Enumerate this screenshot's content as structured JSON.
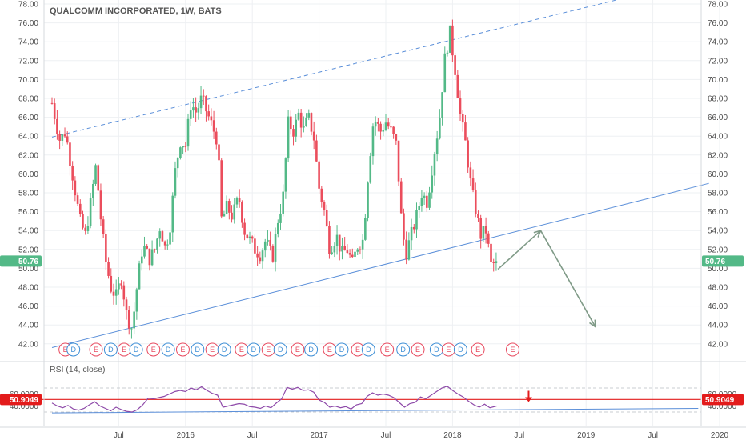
{
  "chart_data": [
    {
      "type": "candlestick",
      "title": "QUALCOMM INCORPORATED, 1W, BATS",
      "ylim": [
        41.4,
        78.0
      ],
      "y_ticks": [
        "42.00",
        "44.00",
        "46.00",
        "48.00",
        "50.00",
        "52.00",
        "54.00",
        "56.00",
        "58.00",
        "60.00",
        "62.00",
        "64.00",
        "66.00",
        "68.00",
        "70.00",
        "72.00",
        "74.00",
        "76.00",
        "78.00"
      ],
      "x_ticks": [
        {
          "label": "Jul",
          "t": 0.5
        },
        {
          "label": "2016",
          "t": 1.0
        },
        {
          "label": "Jul",
          "t": 1.5
        },
        {
          "label": "2017",
          "t": 2.0
        },
        {
          "label": "Jul",
          "t": 2.5
        },
        {
          "label": "2018",
          "t": 3.0
        },
        {
          "label": "Jul",
          "t": 3.5
        },
        {
          "label": "2019",
          "t": 4.0
        },
        {
          "label": "Jul",
          "t": 4.5
        },
        {
          "label": "2020",
          "t": 5.0
        }
      ],
      "last_price": "50.76",
      "up_color": "#53b987",
      "down_color": "#eb4d5c",
      "anchors": [
        [
          0.0,
          67.5
        ],
        [
          0.06,
          63.5
        ],
        [
          0.1,
          64.5
        ],
        [
          0.13,
          62.0
        ],
        [
          0.17,
          58.5
        ],
        [
          0.21,
          55.0
        ],
        [
          0.25,
          53.5
        ],
        [
          0.29,
          57.0
        ],
        [
          0.33,
          61.0
        ],
        [
          0.36,
          56.0
        ],
        [
          0.4,
          51.0
        ],
        [
          0.44,
          48.0
        ],
        [
          0.48,
          47.0
        ],
        [
          0.52,
          49.0
        ],
        [
          0.56,
          45.0
        ],
        [
          0.6,
          43.6
        ],
        [
          0.64,
          48.5
        ],
        [
          0.68,
          52.5
        ],
        [
          0.73,
          51.0
        ],
        [
          0.77,
          52.0
        ],
        [
          0.81,
          54.5
        ],
        [
          0.85,
          52.0
        ],
        [
          0.89,
          55.0
        ],
        [
          0.92,
          60.0
        ],
        [
          0.96,
          63.5
        ],
        [
          1.0,
          63.0
        ],
        [
          1.04,
          67.5
        ],
        [
          1.08,
          66.5
        ],
        [
          1.12,
          68.0
        ],
        [
          1.16,
          66.5
        ],
        [
          1.2,
          65.0
        ],
        [
          1.24,
          63.5
        ],
        [
          1.27,
          55.0
        ],
        [
          1.31,
          56.5
        ],
        [
          1.35,
          55.5
        ],
        [
          1.4,
          57.5
        ],
        [
          1.44,
          54.0
        ],
        [
          1.48,
          53.0
        ],
        [
          1.52,
          52.0
        ],
        [
          1.56,
          51.5
        ],
        [
          1.6,
          53.0
        ],
        [
          1.65,
          51.0
        ],
        [
          1.69,
          55.0
        ],
        [
          1.73,
          57.5
        ],
        [
          1.77,
          65.5
        ],
        [
          1.81,
          64.5
        ],
        [
          1.85,
          66.5
        ],
        [
          1.88,
          64.5
        ],
        [
          1.92,
          66.0
        ],
        [
          1.96,
          64.0
        ],
        [
          2.0,
          58.5
        ],
        [
          2.04,
          56.0
        ],
        [
          2.08,
          52.0
        ],
        [
          2.13,
          53.5
        ],
        [
          2.17,
          51.5
        ],
        [
          2.21,
          52.0
        ],
        [
          2.25,
          50.5
        ],
        [
          2.29,
          52.5
        ],
        [
          2.33,
          53.0
        ],
        [
          2.37,
          60.5
        ],
        [
          2.41,
          66.0
        ],
        [
          2.46,
          64.5
        ],
        [
          2.5,
          65.5
        ],
        [
          2.54,
          64.5
        ],
        [
          2.58,
          63.0
        ],
        [
          2.62,
          54.5
        ],
        [
          2.65,
          51.5
        ],
        [
          2.69,
          53.5
        ],
        [
          2.73,
          55.5
        ],
        [
          2.77,
          58.0
        ],
        [
          2.81,
          57.0
        ],
        [
          2.86,
          62.0
        ],
        [
          2.9,
          65.5
        ],
        [
          2.94,
          72.0
        ],
        [
          2.98,
          75.0
        ],
        [
          3.02,
          71.0
        ],
        [
          3.06,
          66.0
        ],
        [
          3.1,
          63.0
        ],
        [
          3.14,
          58.5
        ],
        [
          3.17,
          56.5
        ],
        [
          3.21,
          53.5
        ],
        [
          3.25,
          54.0
        ],
        [
          3.29,
          50.2
        ],
        [
          3.33,
          50.76
        ]
      ],
      "events": [
        {
          "t": 0.1,
          "label": "E"
        },
        {
          "t": 0.16,
          "label": "D"
        },
        {
          "t": 0.33,
          "label": "E"
        },
        {
          "t": 0.44,
          "label": "D"
        },
        {
          "t": 0.54,
          "label": "E"
        },
        {
          "t": 0.63,
          "label": "D"
        },
        {
          "t": 0.76,
          "label": "E"
        },
        {
          "t": 0.87,
          "label": "D"
        },
        {
          "t": 0.98,
          "label": "E"
        },
        {
          "t": 1.09,
          "label": "D"
        },
        {
          "t": 1.2,
          "label": "E"
        },
        {
          "t": 1.29,
          "label": "D"
        },
        {
          "t": 1.42,
          "label": "E"
        },
        {
          "t": 1.51,
          "label": "D"
        },
        {
          "t": 1.62,
          "label": "E"
        },
        {
          "t": 1.71,
          "label": "D"
        },
        {
          "t": 1.84,
          "label": "E"
        },
        {
          "t": 1.94,
          "label": "D"
        },
        {
          "t": 2.08,
          "label": "E"
        },
        {
          "t": 2.17,
          "label": "D"
        },
        {
          "t": 2.29,
          "label": "E"
        },
        {
          "t": 2.37,
          "label": "D"
        },
        {
          "t": 2.51,
          "label": "E"
        },
        {
          "t": 2.63,
          "label": "D"
        },
        {
          "t": 2.74,
          "label": "E"
        },
        {
          "t": 2.88,
          "label": "D"
        },
        {
          "t": 2.97,
          "label": "E"
        },
        {
          "t": 3.06,
          "label": "D"
        },
        {
          "t": 3.19,
          "label": "E"
        },
        {
          "t": 3.45,
          "label": "E"
        }
      ],
      "trendlines": [
        {
          "name": "upper channel",
          "style": "dashed",
          "color": "#5b8fd9",
          "from": [
            0.0,
            63.9
          ],
          "to": [
            4.22,
            78.4
          ]
        },
        {
          "name": "lower channel",
          "style": "solid",
          "color": "#5b8fd9",
          "from": [
            0.0,
            41.6
          ],
          "to": [
            4.92,
            59.0
          ]
        }
      ],
      "projection": {
        "color": "#7f9a87",
        "points": [
          [
            3.34,
            49.9
          ],
          [
            3.66,
            54.0
          ],
          [
            4.07,
            43.8
          ]
        ]
      }
    },
    {
      "type": "line",
      "title": "RSI (14, close)",
      "ylim": [
        30,
        80
      ],
      "y_ticks": [
        "40.0000",
        "60.0000"
      ],
      "level_line": 50.9049,
      "level_label": "50.9049",
      "bands": [
        70,
        30
      ],
      "line_color": "#8e4aa9",
      "values": [
        [
          0.0,
          45
        ],
        [
          0.04,
          40
        ],
        [
          0.08,
          37
        ],
        [
          0.12,
          41
        ],
        [
          0.16,
          35
        ],
        [
          0.2,
          33
        ],
        [
          0.24,
          36
        ],
        [
          0.28,
          42
        ],
        [
          0.32,
          47
        ],
        [
          0.36,
          40
        ],
        [
          0.4,
          36
        ],
        [
          0.44,
          32
        ],
        [
          0.48,
          38
        ],
        [
          0.52,
          34
        ],
        [
          0.56,
          31
        ],
        [
          0.6,
          30
        ],
        [
          0.64,
          34
        ],
        [
          0.68,
          42
        ],
        [
          0.72,
          53
        ],
        [
          0.76,
          52
        ],
        [
          0.8,
          54
        ],
        [
          0.84,
          56
        ],
        [
          0.88,
          60
        ],
        [
          0.92,
          64
        ],
        [
          0.96,
          66
        ],
        [
          1.0,
          64
        ],
        [
          1.04,
          70
        ],
        [
          1.08,
          67
        ],
        [
          1.12,
          72
        ],
        [
          1.16,
          66
        ],
        [
          1.2,
          61
        ],
        [
          1.24,
          58
        ],
        [
          1.28,
          38
        ],
        [
          1.32,
          40
        ],
        [
          1.36,
          42
        ],
        [
          1.4,
          44
        ],
        [
          1.44,
          43
        ],
        [
          1.48,
          39
        ],
        [
          1.52,
          38
        ],
        [
          1.56,
          36
        ],
        [
          1.6,
          40
        ],
        [
          1.64,
          37
        ],
        [
          1.68,
          45
        ],
        [
          1.72,
          52
        ],
        [
          1.76,
          71
        ],
        [
          1.8,
          68
        ],
        [
          1.84,
          71
        ],
        [
          1.88,
          66
        ],
        [
          1.92,
          67
        ],
        [
          1.96,
          63
        ],
        [
          2.0,
          50
        ],
        [
          2.04,
          46
        ],
        [
          2.08,
          38
        ],
        [
          2.12,
          40
        ],
        [
          2.16,
          37
        ],
        [
          2.2,
          39
        ],
        [
          2.24,
          35
        ],
        [
          2.28,
          42
        ],
        [
          2.32,
          44
        ],
        [
          2.36,
          56
        ],
        [
          2.4,
          62
        ],
        [
          2.44,
          58
        ],
        [
          2.48,
          60
        ],
        [
          2.52,
          58
        ],
        [
          2.56,
          54
        ],
        [
          2.6,
          46
        ],
        [
          2.64,
          38
        ],
        [
          2.68,
          44
        ],
        [
          2.72,
          46
        ],
        [
          2.76,
          55
        ],
        [
          2.8,
          52
        ],
        [
          2.84,
          58
        ],
        [
          2.88,
          64
        ],
        [
          2.92,
          70
        ],
        [
          2.96,
          73
        ],
        [
          3.0,
          66
        ],
        [
          3.04,
          60
        ],
        [
          3.08,
          55
        ],
        [
          3.12,
          48
        ],
        [
          3.16,
          42
        ],
        [
          3.2,
          38
        ],
        [
          3.24,
          43
        ],
        [
          3.28,
          37
        ],
        [
          3.33,
          40
        ]
      ],
      "trendline": {
        "color": "#5b8fd9",
        "from": [
          0.0,
          28.5
        ],
        "to": [
          4.84,
          36.0
        ]
      },
      "arrow": {
        "color": "#e31b1b",
        "t": 3.57,
        "value": 56
      }
    }
  ]
}
